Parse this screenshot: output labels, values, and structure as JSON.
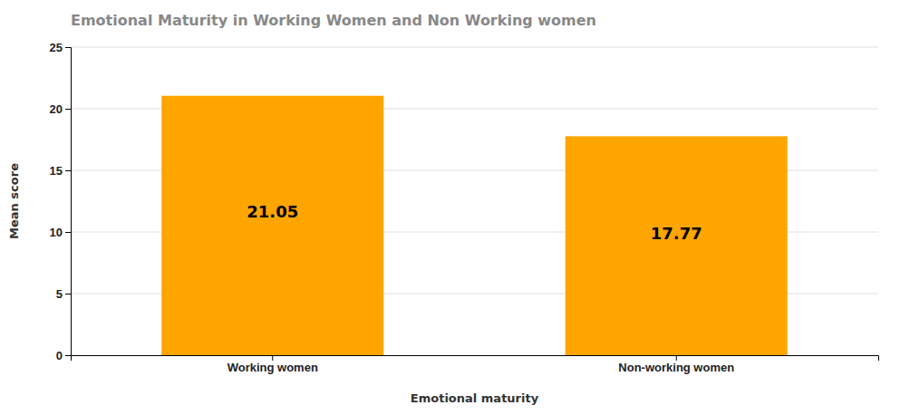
{
  "chart_data": {
    "type": "bar",
    "title": "Emotional Maturity in Working Women and Non Working women",
    "xlabel": "Emotional maturity",
    "ylabel": "Mean score",
    "categories": [
      "Working women",
      "Non-working women"
    ],
    "values": [
      21.05,
      17.77
    ],
    "color": "#FFA500",
    "ylim": [
      0,
      25
    ],
    "yticks": [
      0,
      5,
      10,
      15,
      20,
      25
    ],
    "grid": true,
    "data_labels": true
  }
}
